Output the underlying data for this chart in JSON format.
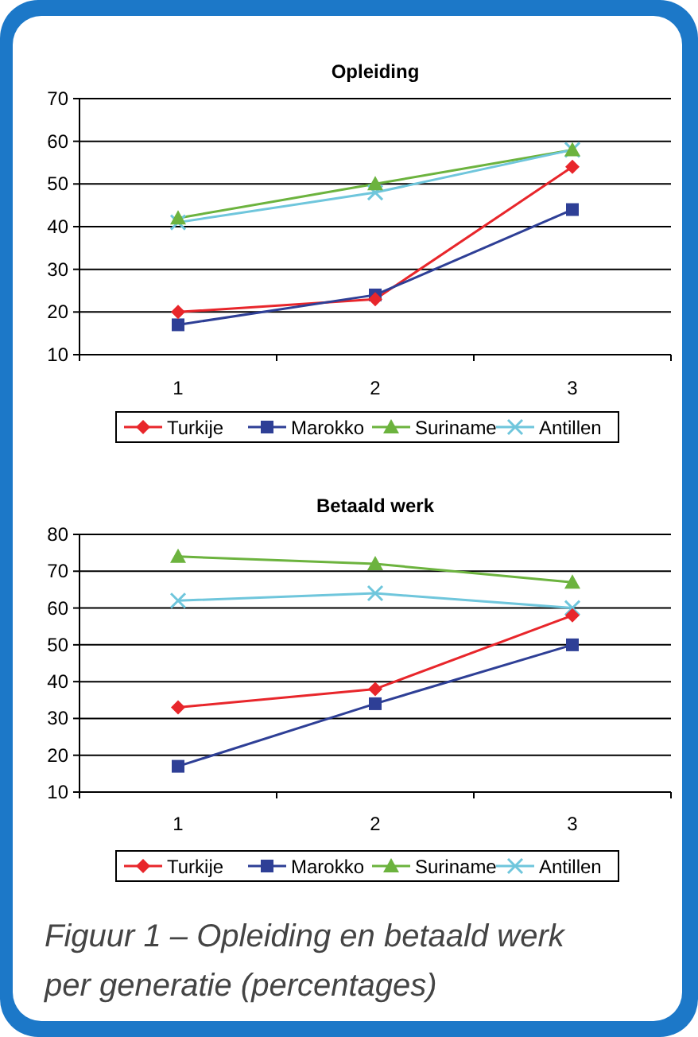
{
  "chart_data": [
    {
      "type": "line",
      "title": "Opleiding",
      "categories": [
        "1",
        "2",
        "3"
      ],
      "ylim": [
        10,
        70
      ],
      "yticks": [
        10,
        20,
        30,
        40,
        50,
        60,
        70
      ],
      "grid": "y",
      "legend": "bottom",
      "series": [
        {
          "name": "Turkije",
          "color": "#e8262b",
          "marker": "diamond",
          "values": [
            20,
            23,
            54
          ]
        },
        {
          "name": "Marokko",
          "color": "#2e3f96",
          "marker": "square",
          "values": [
            17,
            24,
            44
          ]
        },
        {
          "name": "Suriname",
          "color": "#6cb33e",
          "marker": "triangle",
          "values": [
            42,
            50,
            58
          ]
        },
        {
          "name": "Antillen",
          "color": "#6fc6dc",
          "marker": "cross",
          "values": [
            41,
            48,
            58
          ]
        }
      ]
    },
    {
      "type": "line",
      "title": "Betaald werk",
      "categories": [
        "1",
        "2",
        "3"
      ],
      "ylim": [
        10,
        80
      ],
      "yticks": [
        10,
        20,
        30,
        40,
        50,
        60,
        70,
        80
      ],
      "grid": "y",
      "legend": "bottom",
      "series": [
        {
          "name": "Turkije",
          "color": "#e8262b",
          "marker": "diamond",
          "values": [
            33,
            38,
            58
          ]
        },
        {
          "name": "Marokko",
          "color": "#2e3f96",
          "marker": "square",
          "values": [
            17,
            34,
            50
          ]
        },
        {
          "name": "Suriname",
          "color": "#6cb33e",
          "marker": "triangle",
          "values": [
            74,
            72,
            67
          ]
        },
        {
          "name": "Antillen",
          "color": "#6fc6dc",
          "marker": "cross",
          "values": [
            62,
            64,
            60
          ]
        }
      ],
      "annotations": [
        "Figuur 1 – Opleiding en betaald werk per generatie (percentages)"
      ]
    }
  ]
}
